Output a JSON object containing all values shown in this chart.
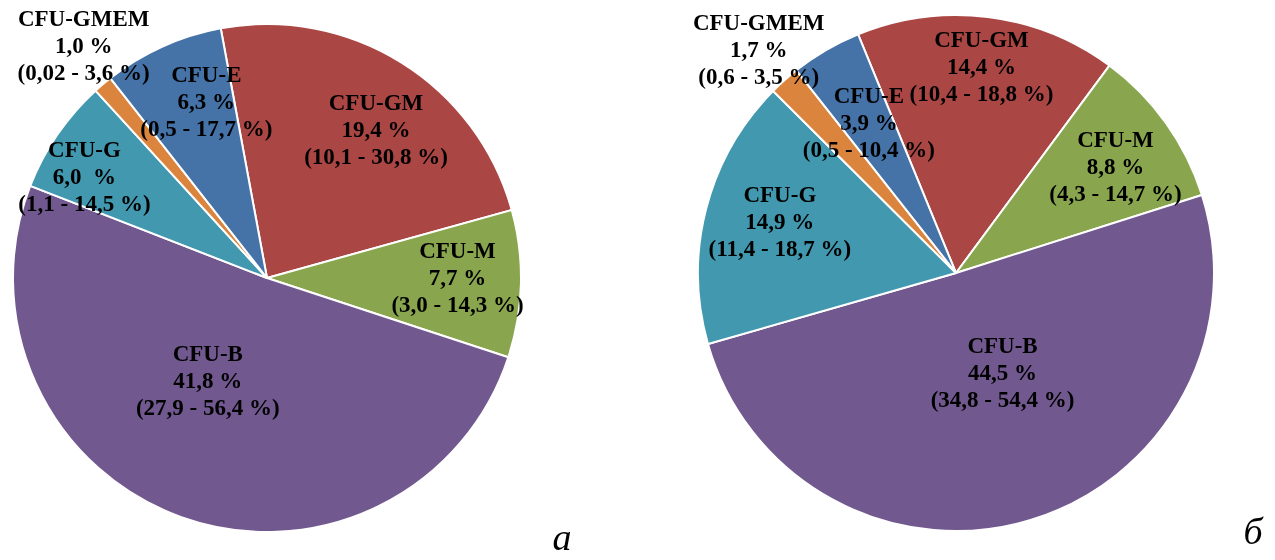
{
  "chart_data": [
    {
      "type": "pie",
      "categories": [
        "CFU-GM",
        "CFU-M",
        "CFU-B",
        "CFU-G",
        "CFU-GMEM",
        "CFU-E"
      ],
      "values": [
        19.4,
        7.7,
        41.8,
        6.0,
        1.0,
        6.3
      ],
      "colors": [
        "#aa4643",
        "#89a54e",
        "#71588f",
        "#4198af",
        "#db843d",
        "#4572a7"
      ],
      "value_labels": [
        "19,4 %\n(10,1 - 30,8 %)",
        "7,7 %\n(3,0 - 14,3 %)",
        "41,8 %\n(27,9 - 56,4 %)",
        "6,0  %\n(1,1 - 14,5 %)",
        "1,0 %\n(0,02 - 3,6 %)",
        "6,3 %\n(0,5 - 17,7 %)"
      ],
      "annotations": [
        "а"
      ],
      "legend": false
    },
    {
      "type": "pie",
      "categories": [
        "CFU-GM",
        "CFU-M",
        "CFU-B",
        "CFU-G",
        "CFU-GMEM",
        "CFU-E"
      ],
      "values": [
        14.4,
        8.8,
        44.5,
        14.9,
        1.7,
        3.9
      ],
      "colors": [
        "#aa4643",
        "#89a54e",
        "#71588f",
        "#4198af",
        "#db843d",
        "#4572a7"
      ],
      "value_labels": [
        "14,4 %\n(10,4 - 18,8 %)",
        "8,8 %\n(4,3 - 14,7 %)",
        "44,5 %\n(34,8 - 54,4 %)",
        "14,9 %\n(11,4 - 18,7 %)",
        "1,7 %\n(0,6 - 3,5 %)",
        "3,9 %\n(0,5 - 10,4 %)"
      ],
      "annotations": [
        "б"
      ],
      "legend": false
    }
  ]
}
